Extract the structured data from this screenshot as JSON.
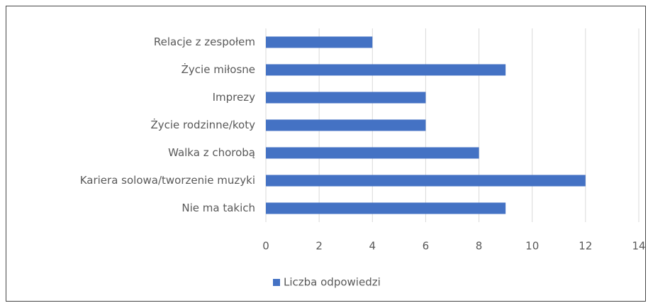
{
  "chart_data": {
    "type": "barh",
    "categories": [
      "Relacje z zespołem",
      "Życie miłosne",
      "Imprezy",
      "Życie rodzinne/koty",
      "Walka z chorobą",
      "Kariera solowa/tworzenie muzyki",
      "Nie ma takich"
    ],
    "series": [
      {
        "name": "Liczba odpowiedzi",
        "color": "#4472c4",
        "values": [
          4,
          9,
          6,
          6,
          8,
          12,
          9
        ]
      }
    ],
    "xlim": [
      0,
      14
    ],
    "xticks": [
      0,
      2,
      4,
      6,
      8,
      10,
      12,
      14
    ],
    "grid": true,
    "legend": "bottom-left"
  }
}
